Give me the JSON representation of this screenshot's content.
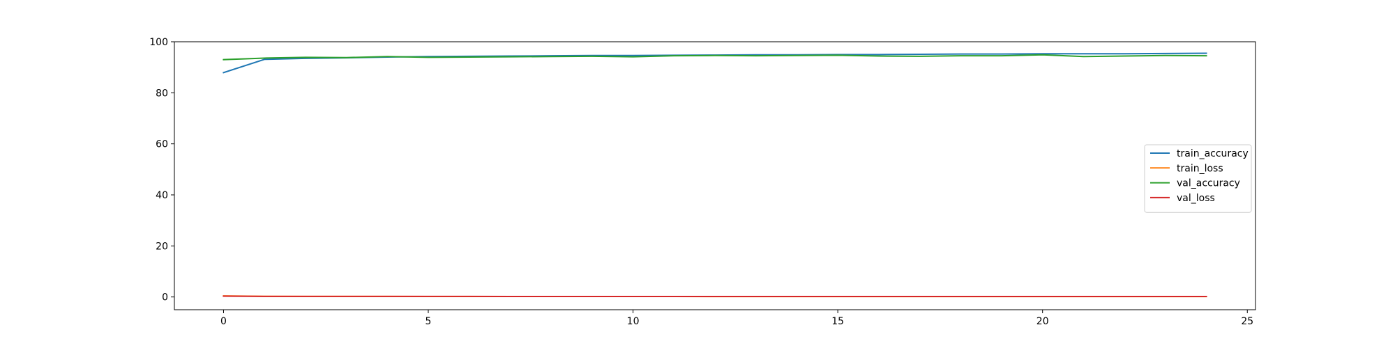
{
  "chart_data": {
    "type": "line",
    "x": [
      0,
      1,
      2,
      3,
      4,
      5,
      6,
      7,
      8,
      9,
      10,
      11,
      12,
      13,
      14,
      15,
      16,
      17,
      18,
      19,
      20,
      21,
      22,
      23,
      24
    ],
    "xlim": [
      -1.2,
      25.2
    ],
    "ylim": [
      -5,
      100
    ],
    "x_ticks": [
      0,
      5,
      10,
      15,
      20,
      25
    ],
    "y_ticks": [
      0,
      20,
      40,
      60,
      80,
      100
    ],
    "x_tick_labels": [
      "0",
      "5",
      "10",
      "15",
      "20",
      "25"
    ],
    "y_tick_labels": [
      "0",
      "20",
      "40",
      "60",
      "80",
      "100"
    ],
    "grid": false,
    "legend_position": "center-right",
    "series": [
      {
        "name": "train_accuracy",
        "color": "#1f77b4",
        "values": [
          87.9,
          93.1,
          93.5,
          93.7,
          94.0,
          94.2,
          94.3,
          94.4,
          94.5,
          94.6,
          94.6,
          94.7,
          94.8,
          94.9,
          94.9,
          95.0,
          95.0,
          95.1,
          95.2,
          95.2,
          95.3,
          95.3,
          95.3,
          95.4,
          95.5
        ]
      },
      {
        "name": "train_loss",
        "color": "#ff7f0e",
        "values": [
          0.42,
          0.25,
          0.22,
          0.21,
          0.2,
          0.19,
          0.19,
          0.18,
          0.18,
          0.17,
          0.17,
          0.17,
          0.16,
          0.16,
          0.16,
          0.16,
          0.15,
          0.15,
          0.15,
          0.15,
          0.15,
          0.14,
          0.14,
          0.14,
          0.14
        ]
      },
      {
        "name": "val_accuracy",
        "color": "#2ca02c",
        "values": [
          93.0,
          93.6,
          93.9,
          93.8,
          94.2,
          93.9,
          94.0,
          94.1,
          94.2,
          94.3,
          94.1,
          94.5,
          94.6,
          94.5,
          94.6,
          94.7,
          94.4,
          94.3,
          94.5,
          94.5,
          94.9,
          94.2,
          94.4,
          94.6,
          94.5
        ]
      },
      {
        "name": "val_loss",
        "color": "#d62728",
        "values": [
          0.32,
          0.23,
          0.21,
          0.21,
          0.2,
          0.2,
          0.2,
          0.19,
          0.19,
          0.19,
          0.19,
          0.18,
          0.18,
          0.18,
          0.18,
          0.18,
          0.19,
          0.19,
          0.18,
          0.18,
          0.17,
          0.19,
          0.19,
          0.18,
          0.18
        ]
      }
    ]
  }
}
